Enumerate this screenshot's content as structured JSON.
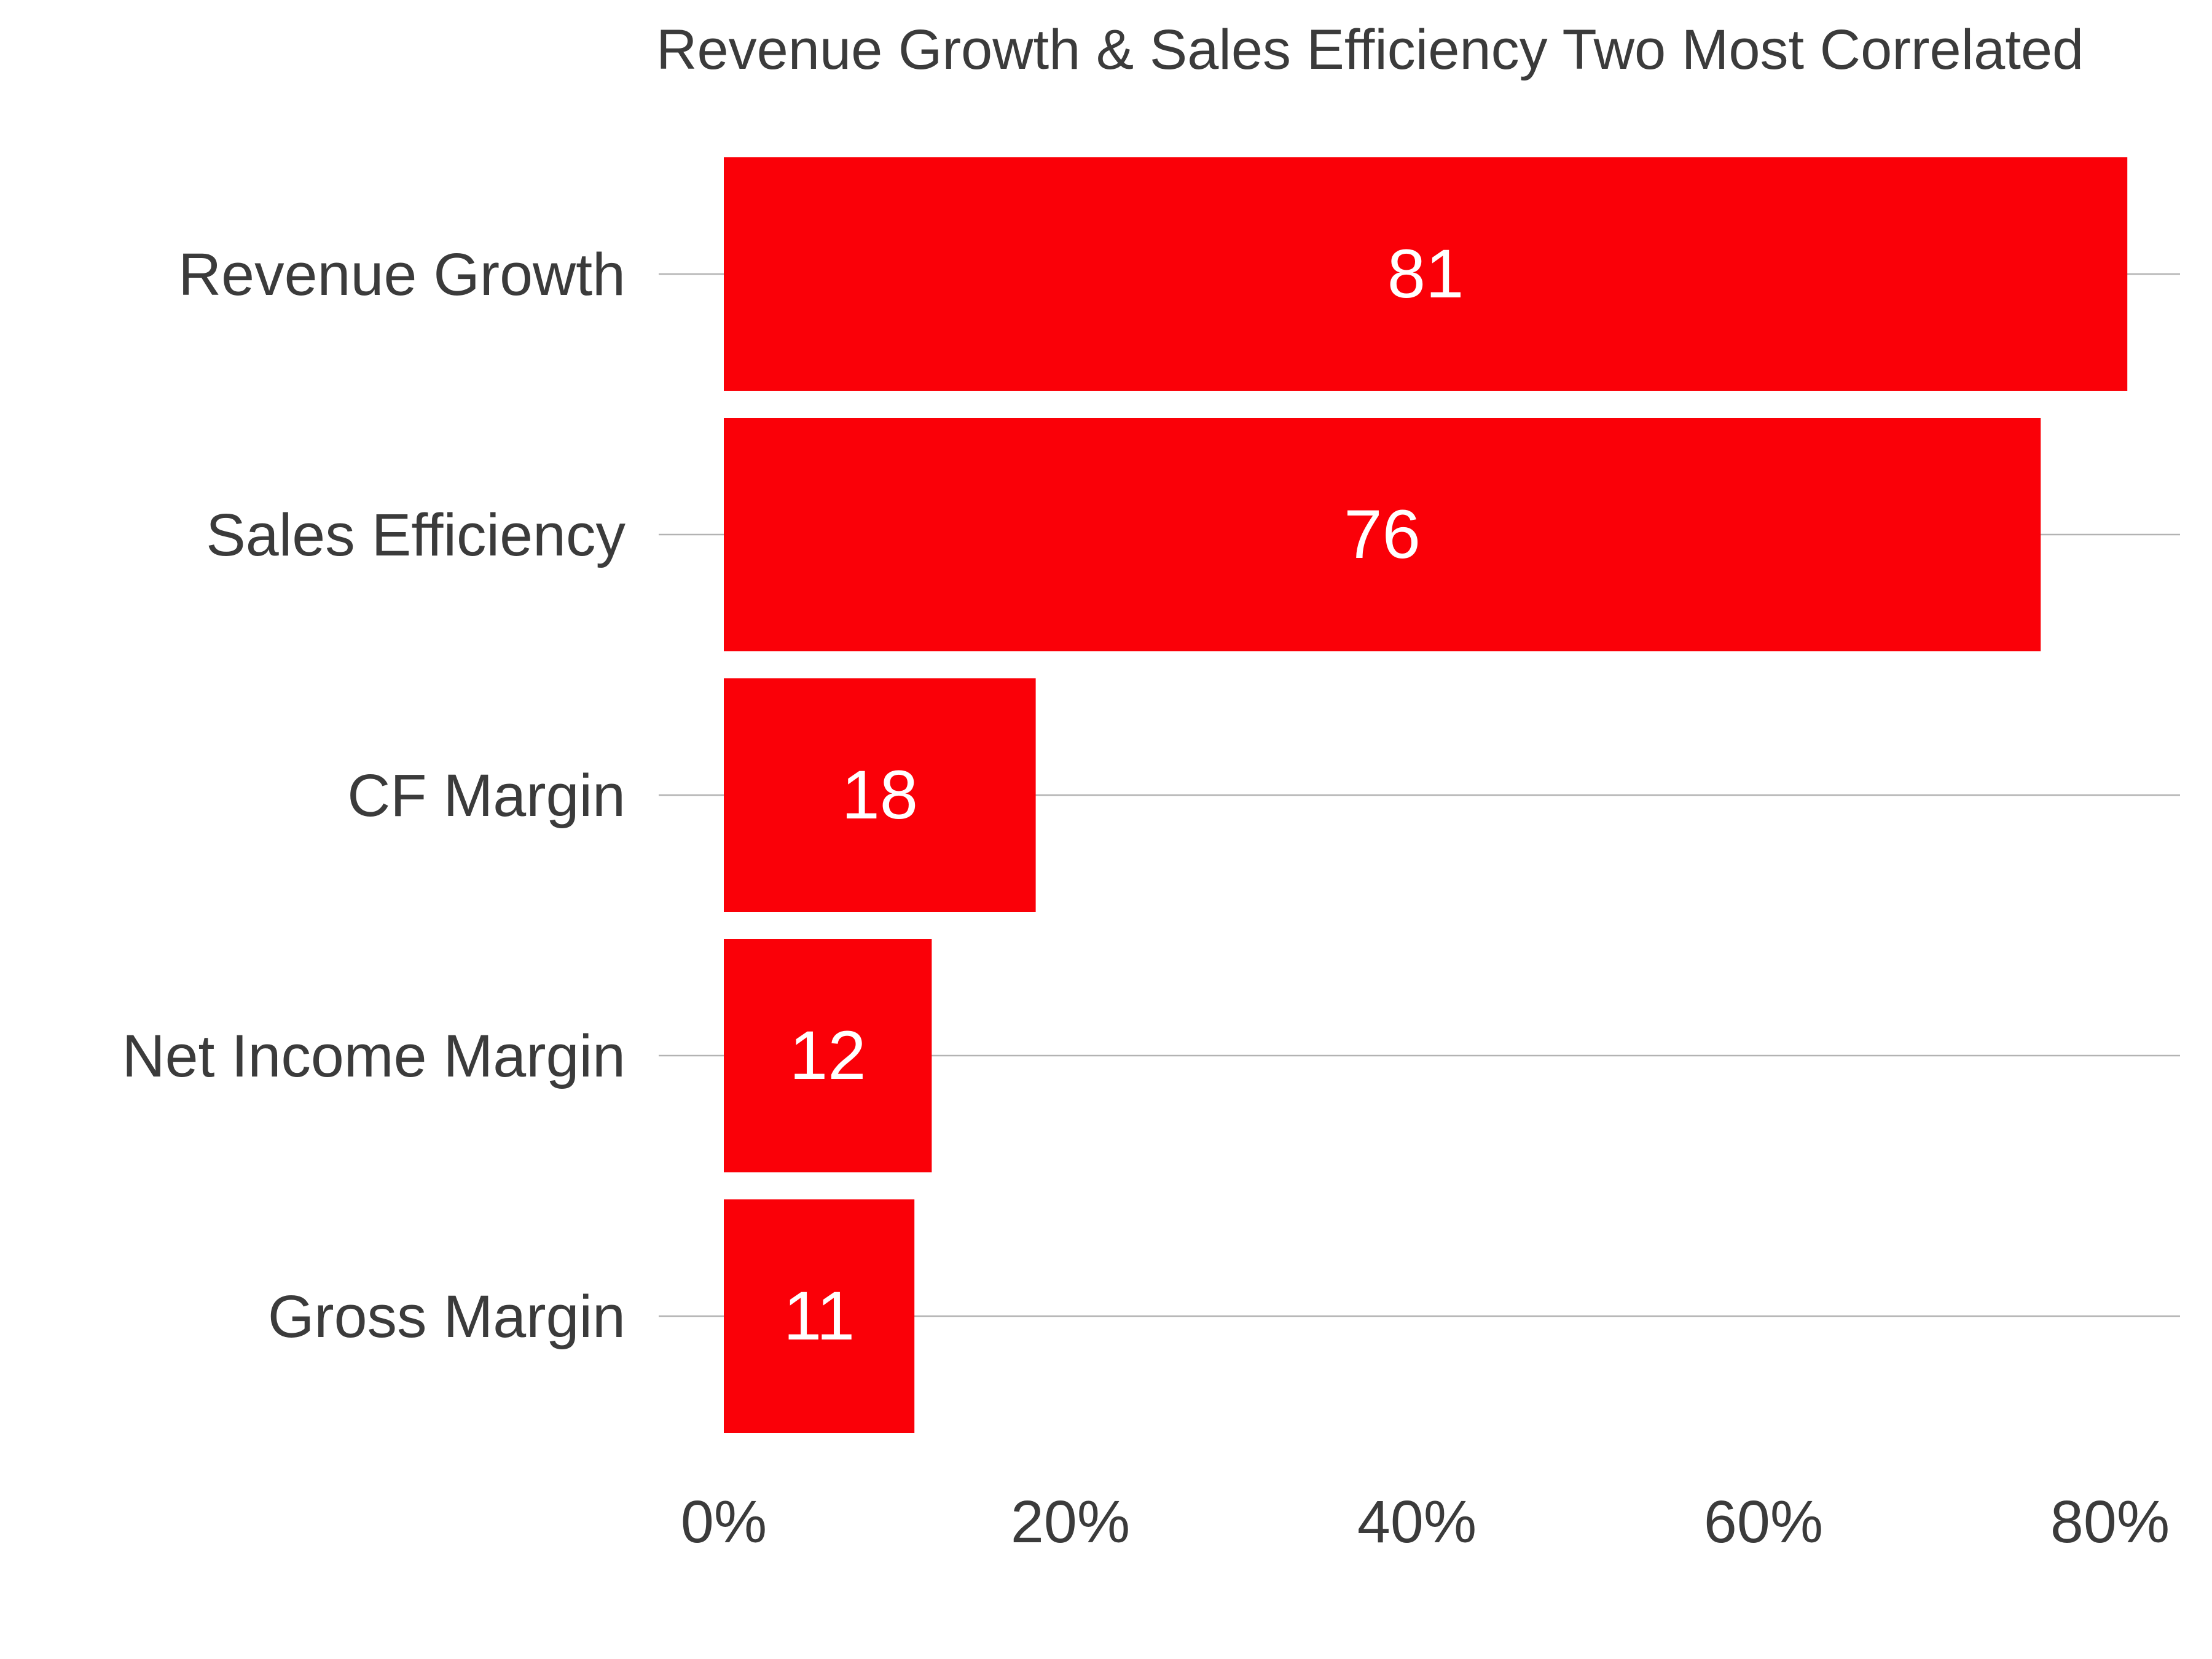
{
  "chart_data": {
    "type": "bar",
    "orientation": "horizontal",
    "title": "Revenue Growth & Sales Efficiency Two Most Correlated",
    "xlabel": "",
    "ylabel": "",
    "categories": [
      "Revenue Growth",
      "Sales Efficiency",
      "CF Margin",
      "Net Income Margin",
      "Gross Margin"
    ],
    "values": [
      81,
      76,
      18,
      12,
      11
    ],
    "data_labels": [
      "81",
      "76",
      "18",
      "12",
      "11"
    ],
    "x_ticks": [
      0,
      20,
      40,
      60,
      80
    ],
    "x_tick_labels": [
      "0%",
      "20%",
      "40%",
      "60%",
      "80%"
    ],
    "xlim": [
      0,
      84
    ],
    "bar_color": "#fa0008",
    "grid": "horizontal lines at categories",
    "legend": "none"
  }
}
